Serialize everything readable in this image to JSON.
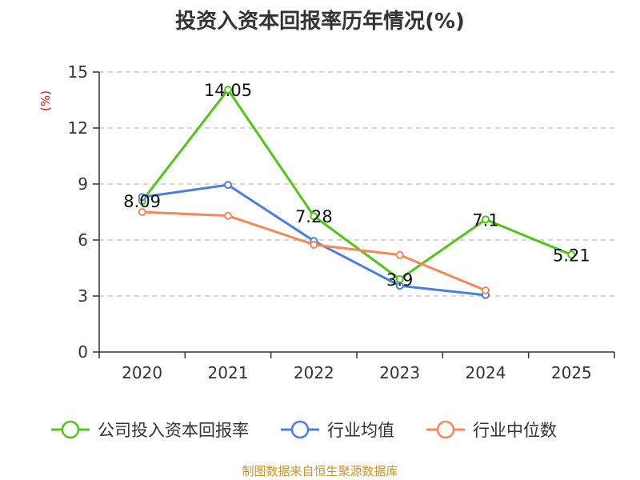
{
  "chart_data": {
    "type": "line",
    "title": "投资入资本回报率历年情况(%)",
    "ylabel": "(%)",
    "xlabel": "",
    "categories": [
      "2020",
      "2021",
      "2022",
      "2023",
      "2024",
      "2025"
    ],
    "ylim": [
      0,
      15
    ],
    "yticks": [
      0,
      3,
      6,
      9,
      12,
      15
    ],
    "grid": true,
    "legend_position": "bottom",
    "series": [
      {
        "name": "公司投入资本回报率",
        "color": "#52c41a",
        "values": [
          8.09,
          14.05,
          7.28,
          3.9,
          7.1,
          5.21
        ],
        "labels": [
          "8.09",
          "14.05",
          "7.28",
          "3.9",
          "7.1",
          "5.21"
        ]
      },
      {
        "name": "行业均值",
        "color": "#4a7fe0",
        "values": [
          8.3,
          8.95,
          5.95,
          3.55,
          3.05,
          null
        ]
      },
      {
        "name": "行业中位数",
        "color": "#f5875a",
        "values": [
          7.5,
          7.3,
          5.75,
          5.2,
          3.3,
          null
        ]
      }
    ]
  },
  "source_note": "制图数据来自恒生聚源数据库"
}
